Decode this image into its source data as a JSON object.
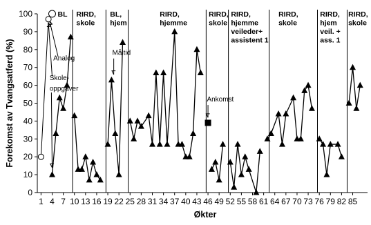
{
  "chart_data": {
    "type": "line",
    "xlabel": "Økter",
    "ylabel": "Forekomst av Tvangsatferd (%)",
    "xlim": [
      0,
      89
    ],
    "ylim": [
      0,
      100
    ],
    "yticks": [
      0,
      10,
      20,
      30,
      40,
      50,
      60,
      70,
      80,
      90,
      100
    ],
    "xticks": [
      1,
      4,
      7,
      10,
      13,
      16,
      19,
      22,
      25,
      28,
      31,
      34,
      37,
      40,
      43,
      46,
      49,
      52,
      55,
      58,
      61,
      64,
      67,
      70,
      73,
      76,
      79,
      82,
      85
    ],
    "phase_lines": [
      9.5,
      18.5,
      24.5,
      45.5,
      51.5,
      62.5,
      75.5,
      83.5
    ],
    "phases": [
      {
        "label": [
          "BL"
        ],
        "x": 5.5
      },
      {
        "label": [
          "RIRD,",
          "skole"
        ],
        "x": 10.5
      },
      {
        "label": [
          "BL,",
          "hjem"
        ],
        "x": 19.6
      },
      {
        "label": [
          "RIRD,",
          "hjemme"
        ],
        "x": 33
      },
      {
        "label": [
          "RIRD,",
          "skole"
        ],
        "x": 46.2
      },
      {
        "label": [
          "RIRD,",
          "hjemme",
          "veileder+",
          "assistent 1"
        ],
        "x": 52.2
      },
      {
        "label": [
          "RIRD,",
          "skole"
        ],
        "x": 65
      },
      {
        "label": [
          "RIRD,",
          "hjem",
          "veil. +",
          "ass. 1"
        ],
        "x": 76.2
      },
      {
        "label": [
          "RIRD,",
          "skole"
        ],
        "x": 83.8
      }
    ],
    "annotations": [
      {
        "text": "Analog",
        "x": 4.3,
        "y": 74
      },
      {
        "text": "Skole-",
        "x": 3.3,
        "y": 63
      },
      {
        "text": "oppgaver",
        "x": 3.3,
        "y": 57
      },
      {
        "text": "Måltid",
        "x": 20.2,
        "y": 77
      },
      {
        "text": "Ankomst",
        "x": 45.7,
        "y": 51
      }
    ],
    "series": [
      {
        "marker": "open-circle",
        "points": [
          [
            1,
            20
          ],
          [
            3,
            97
          ],
          [
            4,
            100
          ]
        ]
      },
      {
        "marker": "triangle",
        "segments": [
          [
            [
              4,
              10
            ],
            [
              5,
              33
            ],
            [
              6,
              53
            ],
            [
              7,
              47
            ],
            [
              8,
              60
            ],
            [
              9,
              87
            ]
          ],
          [
            [
              10,
              43
            ],
            [
              11,
              13
            ],
            [
              12,
              13
            ],
            [
              13,
              20
            ],
            [
              14,
              7
            ],
            [
              15,
              17
            ],
            [
              16,
              10
            ],
            [
              17,
              7
            ]
          ],
          [
            [
              19,
              27
            ],
            [
              20,
              63
            ],
            [
              21,
              33
            ],
            [
              22,
              10
            ],
            [
              23,
              84
            ]
          ],
          [
            [
              25,
              40
            ],
            [
              26,
              30
            ],
            [
              27,
              40
            ],
            [
              28,
              37
            ],
            [
              30,
              43
            ],
            [
              31,
              27
            ],
            [
              32,
              67
            ],
            [
              33,
              27
            ],
            [
              34,
              67
            ],
            [
              35,
              27
            ],
            [
              37,
              90
            ],
            [
              38,
              27
            ],
            [
              39,
              27
            ],
            [
              40,
              20
            ],
            [
              41,
              20
            ],
            [
              42,
              33
            ],
            [
              43,
              80
            ],
            [
              44,
              67
            ]
          ],
          [
            [
              47,
              13
            ],
            [
              48,
              17
            ],
            [
              49,
              7
            ],
            [
              50,
              27
            ]
          ],
          [
            [
              52,
              17
            ],
            [
              53,
              3
            ],
            [
              54,
              27
            ],
            [
              55,
              10
            ],
            [
              56,
              20
            ],
            [
              57,
              13
            ],
            [
              59,
              0
            ],
            [
              60,
              23
            ]
          ],
          [
            [
              62,
              30
            ],
            [
              63,
              33
            ],
            [
              65,
              44
            ],
            [
              66,
              27
            ],
            [
              67,
              44
            ],
            [
              69,
              53
            ],
            [
              70,
              30
            ],
            [
              71,
              30
            ],
            [
              72,
              57
            ],
            [
              73,
              60
            ],
            [
              74,
              47
            ]
          ],
          [
            [
              76,
              30
            ],
            [
              77,
              27
            ],
            [
              78,
              10
            ],
            [
              79,
              27
            ],
            [
              81,
              27
            ],
            [
              82,
              20
            ]
          ],
          [
            [
              84,
              50
            ],
            [
              85,
              70
            ],
            [
              86,
              47
            ],
            [
              87,
              60
            ]
          ]
        ]
      },
      {
        "marker": "square",
        "points": [
          [
            46,
            39
          ]
        ]
      }
    ],
    "grid": false,
    "legend": "none"
  }
}
